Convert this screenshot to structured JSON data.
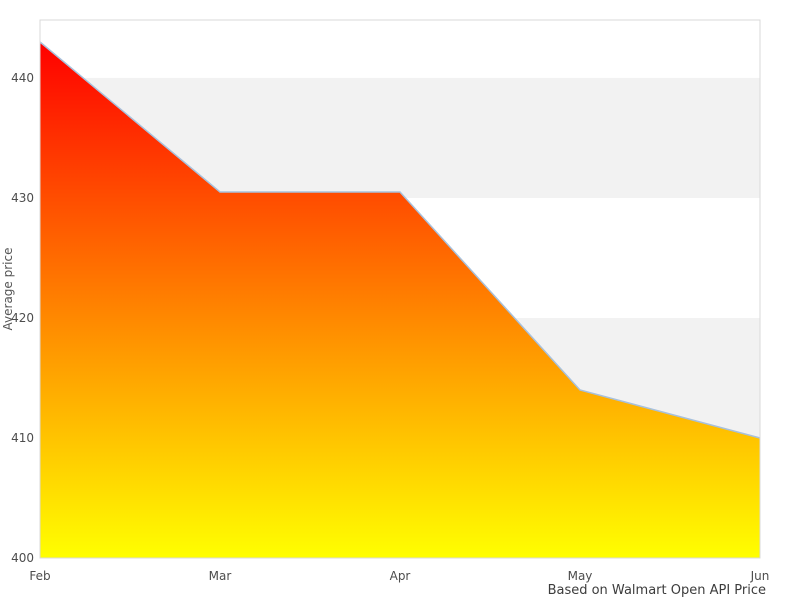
{
  "chart_data": {
    "type": "area",
    "x": [
      "Feb",
      "Mar",
      "Apr",
      "May",
      "Jun"
    ],
    "series": [
      {
        "name": "Average price",
        "values": [
          443,
          430.5,
          430.5,
          414,
          410
        ]
      }
    ],
    "title": "",
    "xlabel": "",
    "ylabel": "Average price",
    "caption": "Based on Walmart Open API Price",
    "ylim": [
      400,
      444.83
    ],
    "yticks": [
      400,
      410,
      420,
      430,
      440
    ],
    "grid": "alternating horizontal bands",
    "gray_band_intervals": [
      [
        430,
        440
      ],
      [
        410,
        420
      ]
    ],
    "legend": "none",
    "colors": {
      "gradient_top": "#ff0000",
      "gradient_bottom": "#ffff00",
      "line": "#a8c1dc",
      "band": "#f2f2f2",
      "plot_border": "#d9d9d9",
      "tick_text": "#4d4d4d",
      "axis_title_text": "#555555",
      "caption_text": "#3c3c3c",
      "background": "#ffffff"
    }
  }
}
